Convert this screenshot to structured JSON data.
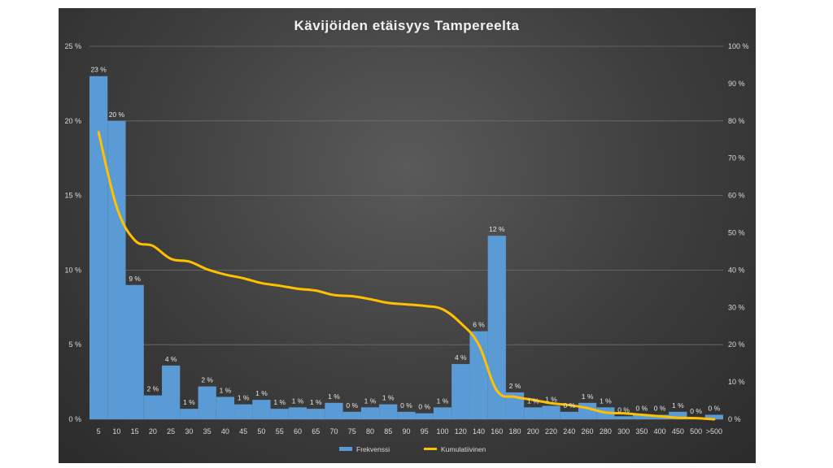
{
  "chart_data": {
    "type": "bar",
    "title": "Kävijöiden etäisyys Tampereelta",
    "categories": [
      "5",
      "10",
      "15",
      "20",
      "25",
      "30",
      "35",
      "40",
      "45",
      "50",
      "55",
      "60",
      "65",
      "70",
      "75",
      "80",
      "85",
      "90",
      "95",
      "100",
      "120",
      "140",
      "160",
      "180",
      "200",
      "220",
      "240",
      "260",
      "280",
      "300",
      "350",
      "400",
      "450",
      "500",
      ">500"
    ],
    "series": [
      {
        "name": "Frekvenssi",
        "type": "bar",
        "axis": "left",
        "color": "#5b9bd5",
        "values": [
          23.0,
          20.0,
          9.0,
          1.6,
          3.6,
          0.7,
          2.2,
          1.5,
          1.0,
          1.3,
          0.7,
          0.8,
          0.7,
          1.1,
          0.5,
          0.8,
          1.0,
          0.5,
          0.4,
          0.8,
          3.7,
          5.9,
          12.3,
          1.8,
          0.8,
          0.9,
          0.5,
          1.1,
          0.8,
          0.2,
          0.3,
          0.3,
          0.5,
          0.1,
          0.3
        ],
        "labels": [
          "23 %",
          "20 %",
          "9 %",
          "2 %",
          "4 %",
          "1 %",
          "2 %",
          "1 %",
          "1 %",
          "1 %",
          "1 %",
          "1 %",
          "1 %",
          "1 %",
          "0 %",
          "1 %",
          "1 %",
          "0 %",
          "0 %",
          "1 %",
          "4 %",
          "6 %",
          "12 %",
          "2 %",
          "1 %",
          "1 %",
          "0 %",
          "1 %",
          "1 %",
          "0 %",
          "0 %",
          "0 %",
          "1 %",
          "0 %",
          "0 %"
        ]
      },
      {
        "name": "Kumulatiivinen",
        "type": "line",
        "axis": "right",
        "color": "#ffc000",
        "values": [
          77,
          57,
          48,
          46.5,
          43,
          42.3,
          40.2,
          38.8,
          37.8,
          36.5,
          35.8,
          35.0,
          34.5,
          33.3,
          33.0,
          32.2,
          31.2,
          30.8,
          30.4,
          29.5,
          25.8,
          20.0,
          7.7,
          6.0,
          5.2,
          4.3,
          3.8,
          3.0,
          1.8,
          1.6,
          1.2,
          0.8,
          0.4,
          0.3,
          0.0
        ]
      }
    ],
    "ylim": [
      0,
      25
    ],
    "y_ticks": [
      0,
      5,
      10,
      15,
      20,
      25
    ],
    "y_tick_labels": [
      "0 %",
      "5 %",
      "10 %",
      "15 %",
      "20 %",
      "25 %"
    ],
    "y2lim": [
      0,
      100
    ],
    "y2_ticks": [
      0,
      10,
      20,
      30,
      40,
      50,
      60,
      70,
      80,
      90,
      100
    ],
    "y2_tick_labels": [
      "0 %",
      "10 %",
      "20 %",
      "30 %",
      "40 %",
      "50 %",
      "60 %",
      "70 %",
      "80 %",
      "90 %",
      "100 %"
    ],
    "grid": true,
    "legend_position": "bottom",
    "xlabel": "",
    "ylabel": ""
  }
}
